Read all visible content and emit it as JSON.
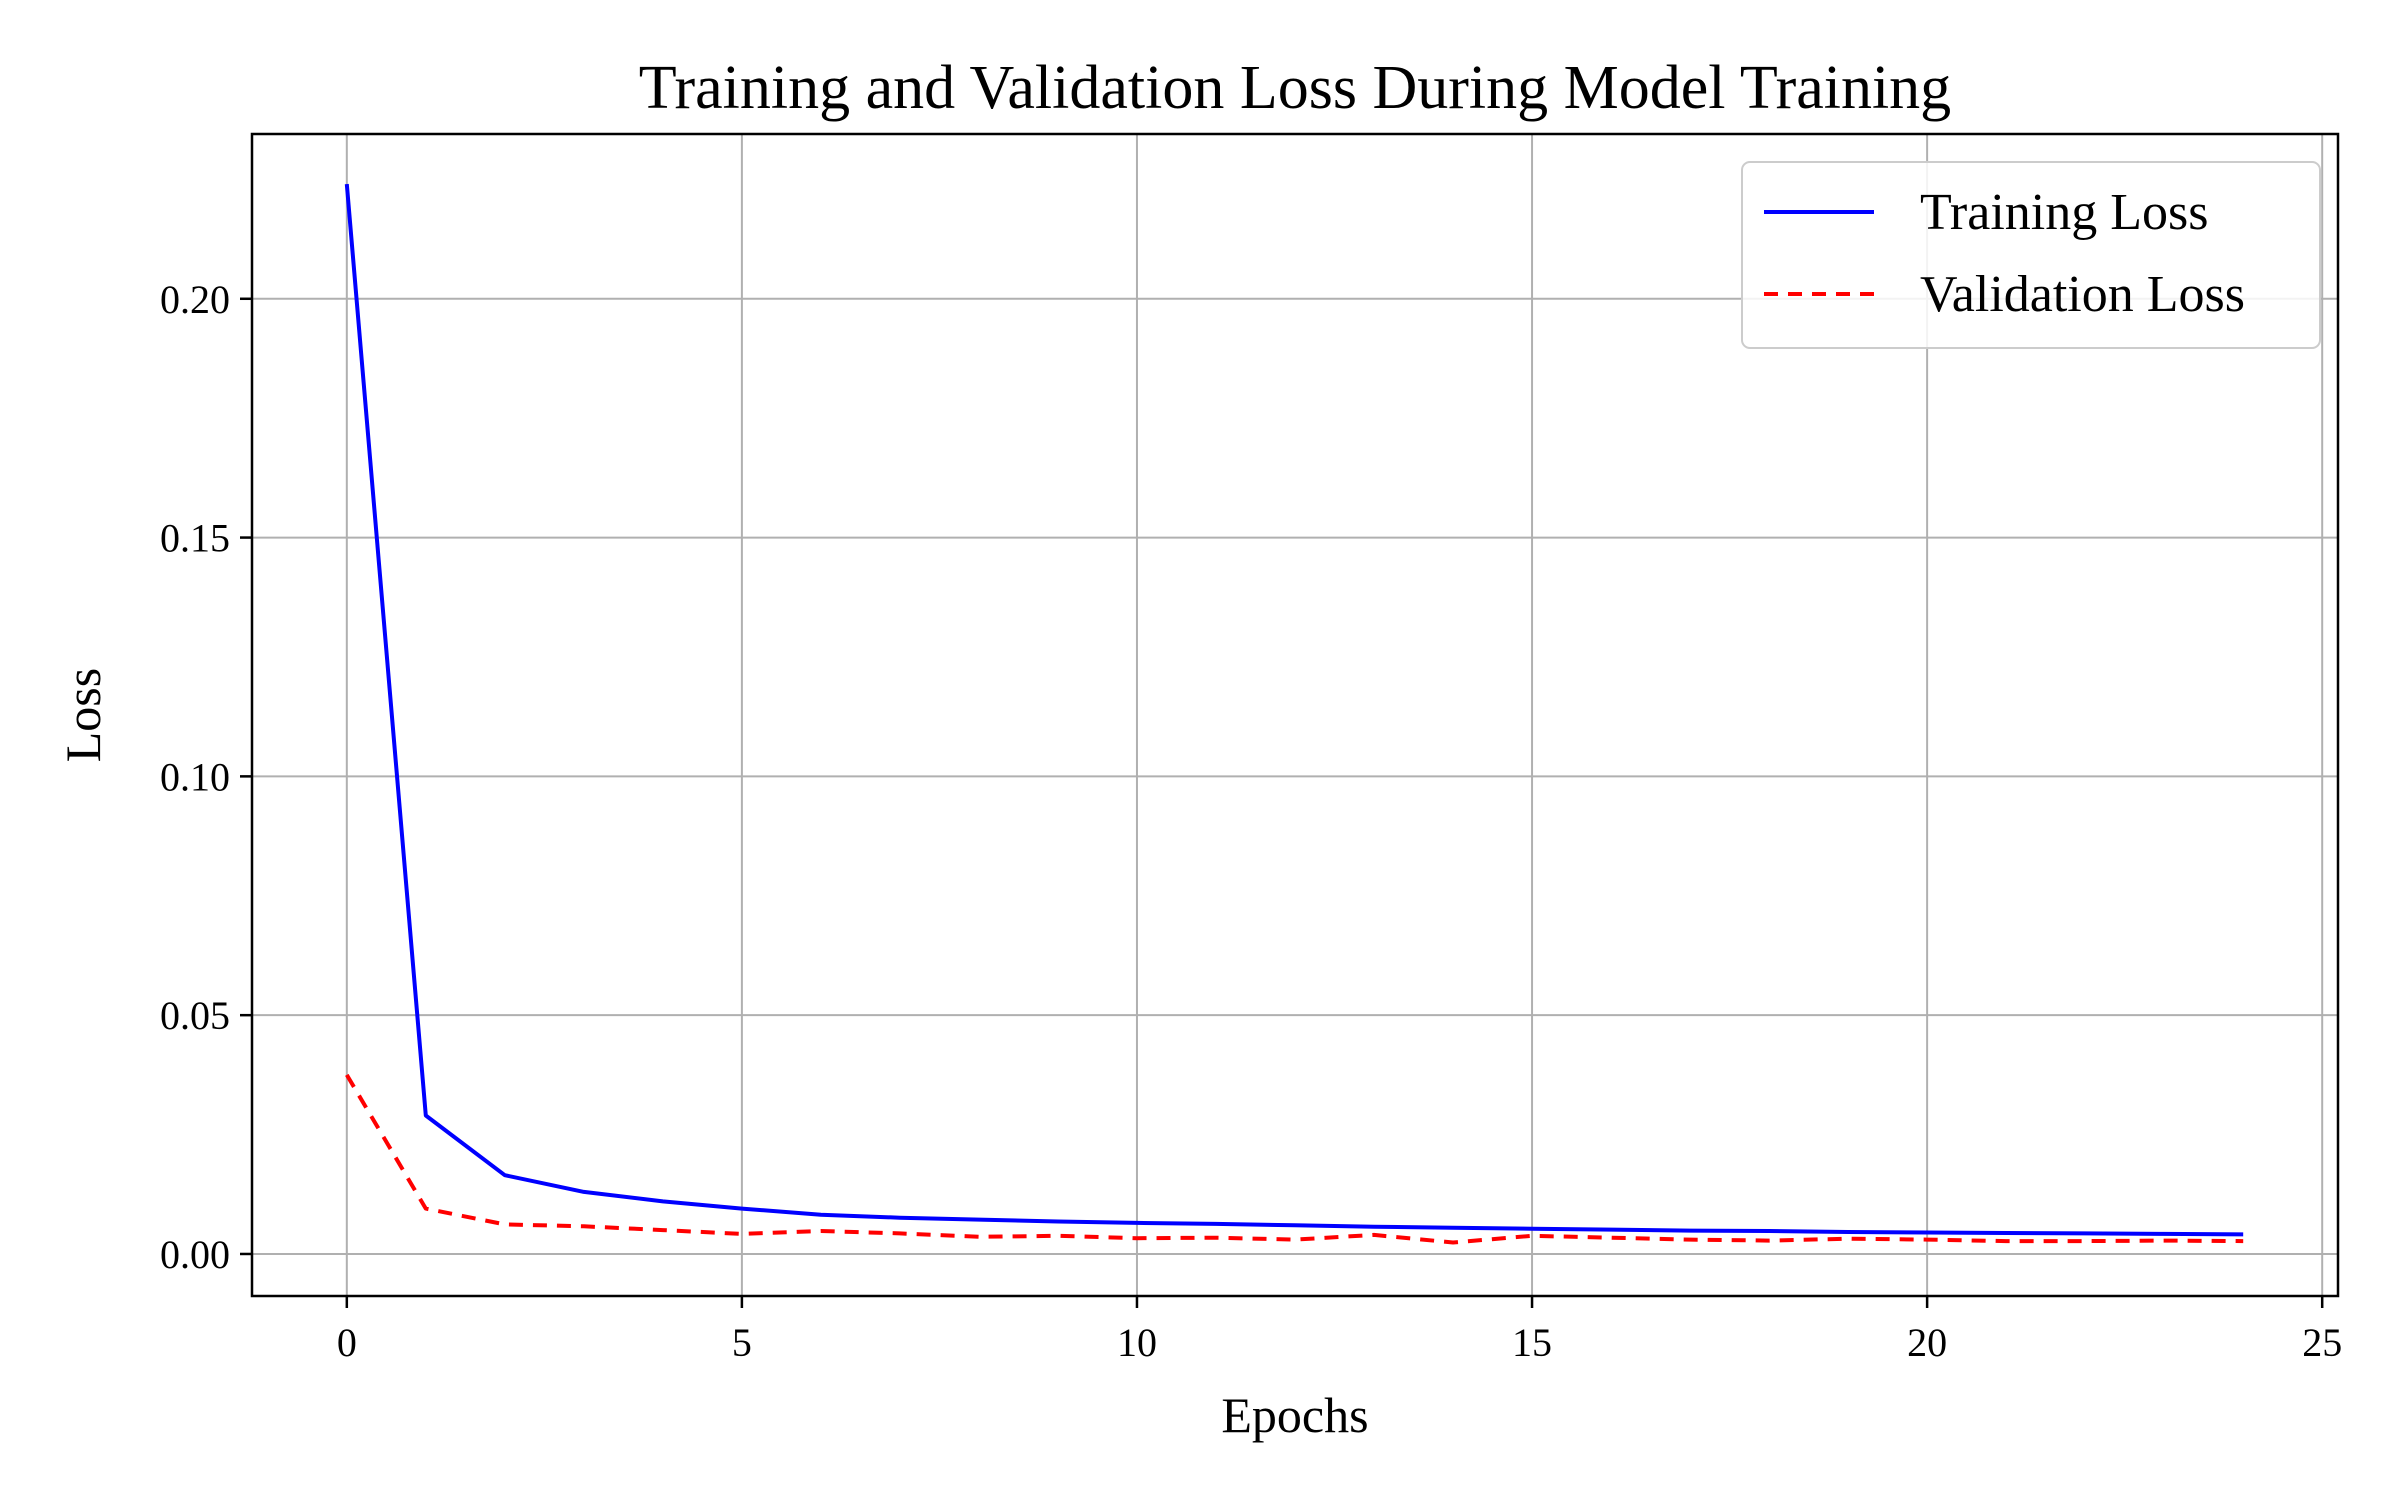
{
  "chart_data": {
    "type": "line",
    "title": "Training and Validation Loss During Model Training",
    "xlabel": "Epochs",
    "ylabel": "Loss",
    "xlim": [
      -1.2,
      25.2
    ],
    "ylim": [
      -0.0088,
      0.2345
    ],
    "xticks": [
      0,
      5,
      10,
      15,
      20,
      25
    ],
    "yticks": [
      0.0,
      0.05,
      0.1,
      0.15,
      0.2
    ],
    "xtick_labels": [
      "0",
      "5",
      "10",
      "15",
      "20",
      "25"
    ],
    "ytick_labels": [
      "0.00",
      "0.05",
      "0.10",
      "0.15",
      "0.20"
    ],
    "grid": true,
    "legend_position": "top-right",
    "x": [
      0,
      1,
      2,
      3,
      4,
      5,
      6,
      7,
      8,
      9,
      10,
      11,
      12,
      13,
      14,
      15,
      16,
      17,
      18,
      19,
      20,
      21,
      22,
      23,
      24
    ],
    "series": [
      {
        "name": "Training Loss",
        "color": "#0000ff",
        "style": "solid",
        "values": [
          0.224,
          0.029,
          0.0165,
          0.013,
          0.011,
          0.0095,
          0.0082,
          0.0076,
          0.0072,
          0.0068,
          0.0065,
          0.0063,
          0.006,
          0.0057,
          0.0055,
          0.0053,
          0.0051,
          0.0049,
          0.0048,
          0.0046,
          0.0045,
          0.0044,
          0.0043,
          0.0042,
          0.0041
        ]
      },
      {
        "name": "Validation Loss",
        "color": "#ff0000",
        "style": "dashed",
        "values": [
          0.0375,
          0.0095,
          0.0062,
          0.0058,
          0.005,
          0.0042,
          0.0048,
          0.0043,
          0.0036,
          0.0038,
          0.0033,
          0.0034,
          0.003,
          0.004,
          0.0024,
          0.0038,
          0.0034,
          0.003,
          0.0028,
          0.0032,
          0.003,
          0.0027,
          0.0027,
          0.0028,
          0.0027
        ]
      }
    ]
  }
}
